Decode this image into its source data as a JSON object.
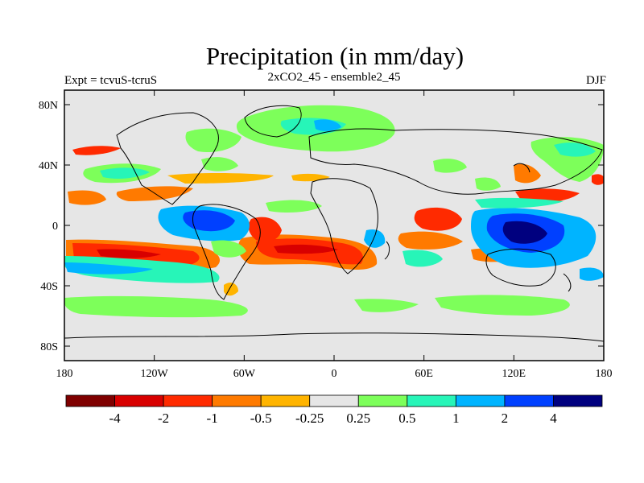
{
  "header": {
    "title": "Precipitation (in mm/day)",
    "left_label": "Expt = tcvuS-tcruS",
    "center_label": "2xCO2_45 - ensemble2_45",
    "right_label": "DJF"
  },
  "map": {
    "lon_ticks": [
      "180",
      "120W",
      "60W",
      "0",
      "60E",
      "120E",
      "180"
    ],
    "lat_ticks": [
      "80N",
      "40N",
      "0",
      "40S",
      "80S"
    ],
    "background_color": "#e6e6e6"
  },
  "colorbar": {
    "colors": [
      "#7f0000",
      "#d80000",
      "#ff2a00",
      "#ff7a00",
      "#ffb400",
      "#e6e6e6",
      "#7dff5a",
      "#27f5b8",
      "#00b4ff",
      "#0040ff",
      "#00007f"
    ],
    "labels": [
      "-4",
      "-2",
      "-1",
      "-0.5",
      "-0.25",
      "0.25",
      "0.5",
      "1",
      "2",
      "4"
    ]
  }
}
